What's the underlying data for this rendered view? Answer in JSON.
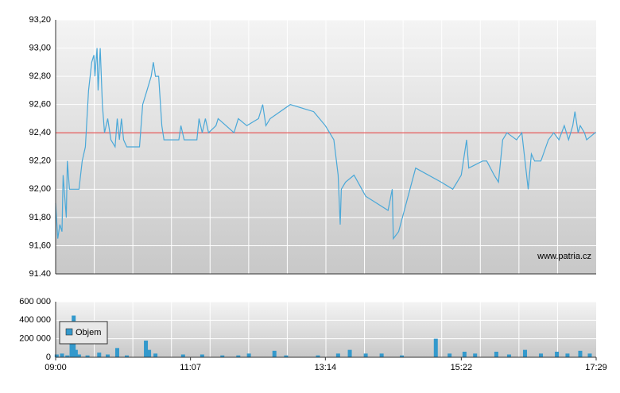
{
  "chart_data": [
    {
      "type": "line",
      "xlim": [
        540,
        1049
      ],
      "ylim": [
        91.4,
        93.2
      ],
      "yticks": [
        {
          "value": 91.4,
          "label": "91.40"
        },
        {
          "value": 91.6,
          "label": "91,60"
        },
        {
          "value": 91.8,
          "label": "91,80"
        },
        {
          "value": 92.0,
          "label": "92,00"
        },
        {
          "value": 92.2,
          "label": "92,20"
        },
        {
          "value": 92.4,
          "label": "92,40"
        },
        {
          "value": 92.6,
          "label": "92,60"
        },
        {
          "value": 92.8,
          "label": "92,80"
        },
        {
          "value": 93.0,
          "label": "93,00"
        },
        {
          "value": 93.2,
          "label": "93,20"
        }
      ],
      "grid": true,
      "reference_line": {
        "value": 92.4,
        "color": "#e03030"
      },
      "annotation": "www.patria.cz",
      "x": [
        540,
        542,
        544,
        546,
        547,
        550,
        551,
        553,
        562,
        565,
        568,
        571,
        574,
        576,
        577,
        579,
        580,
        582,
        584,
        586,
        589,
        592,
        596,
        598,
        600,
        602,
        604,
        607,
        619,
        622,
        626,
        630,
        632,
        634,
        637,
        640,
        642,
        656,
        658,
        661,
        673,
        675,
        678,
        681,
        684,
        691,
        693,
        708,
        712,
        720,
        731,
        735,
        738,
        742,
        761,
        783,
        794,
        798,
        802,
        806,
        808,
        809,
        813,
        821,
        832,
        853,
        857,
        858,
        863,
        879,
        903,
        914,
        918,
        922,
        927,
        929,
        942,
        946,
        953,
        957,
        961,
        965,
        974,
        979,
        982,
        985,
        988,
        991,
        997,
        1004,
        1009,
        1014,
        1019,
        1023,
        1027,
        1029,
        1032,
        1034,
        1038,
        1040,
        1048,
        1049
      ],
      "series": [
        {
          "color": "#4aa8d8",
          "values": [
            91.9,
            91.65,
            91.75,
            91.7,
            92.1,
            91.8,
            92.2,
            92.0,
            92.0,
            92.2,
            92.3,
            92.7,
            92.9,
            92.95,
            92.8,
            93.0,
            92.7,
            93.0,
            92.6,
            92.4,
            92.5,
            92.35,
            92.3,
            92.5,
            92.35,
            92.5,
            92.35,
            92.3,
            92.3,
            92.6,
            92.7,
            92.8,
            92.9,
            92.8,
            92.8,
            92.45,
            92.35,
            92.35,
            92.45,
            92.35,
            92.35,
            92.5,
            92.4,
            92.5,
            92.4,
            92.45,
            92.5,
            92.4,
            92.5,
            92.45,
            92.5,
            92.6,
            92.45,
            92.5,
            92.6,
            92.55,
            92.45,
            92.4,
            92.35,
            92.1,
            91.75,
            92.0,
            92.05,
            92.1,
            91.95,
            91.85,
            92.0,
            91.65,
            91.7,
            92.15,
            92.05,
            92.0,
            92.05,
            92.1,
            92.35,
            92.15,
            92.2,
            92.2,
            92.1,
            92.05,
            92.35,
            92.4,
            92.35,
            92.4,
            92.2,
            92.0,
            92.25,
            92.2,
            92.2,
            92.35,
            92.4,
            92.35,
            92.45,
            92.35,
            92.45,
            92.55,
            92.4,
            92.45,
            92.4,
            92.35,
            92.4,
            92.4
          ]
        }
      ]
    },
    {
      "type": "bar",
      "xlim": [
        540,
        1049
      ],
      "xticks": [
        {
          "value": 540,
          "label": "09:00"
        },
        {
          "value": 667,
          "label": "11:07"
        },
        {
          "value": 794,
          "label": "13:14"
        },
        {
          "value": 922,
          "label": "15:22"
        },
        {
          "value": 1049,
          "label": "17:29"
        }
      ],
      "ylim": [
        0,
        600000
      ],
      "yticks": [
        0,
        {
          "value": 200000,
          "label": "200 000"
        },
        {
          "value": 400000,
          "label": "400 000"
        },
        {
          "value": 600000,
          "label": "600 000"
        }
      ],
      "grid": true,
      "x": [
        541,
        546,
        551,
        555,
        557,
        559,
        562,
        570,
        581,
        589,
        598,
        607,
        625,
        628,
        634,
        660,
        678,
        697,
        712,
        722,
        746,
        757,
        787,
        806,
        817,
        832,
        847,
        866,
        898,
        911,
        925,
        935,
        955,
        967,
        982,
        997,
        1012,
        1022,
        1034,
        1043
      ],
      "series": [
        {
          "name": "Objem",
          "color": "#3399cc",
          "values": [
            30000,
            40000,
            20000,
            150000,
            450000,
            80000,
            30000,
            20000,
            50000,
            30000,
            100000,
            20000,
            180000,
            80000,
            40000,
            30000,
            30000,
            20000,
            20000,
            40000,
            70000,
            20000,
            20000,
            40000,
            80000,
            40000,
            40000,
            20000,
            200000,
            40000,
            60000,
            40000,
            60000,
            30000,
            80000,
            40000,
            60000,
            40000,
            70000,
            40000
          ]
        }
      ]
    }
  ]
}
